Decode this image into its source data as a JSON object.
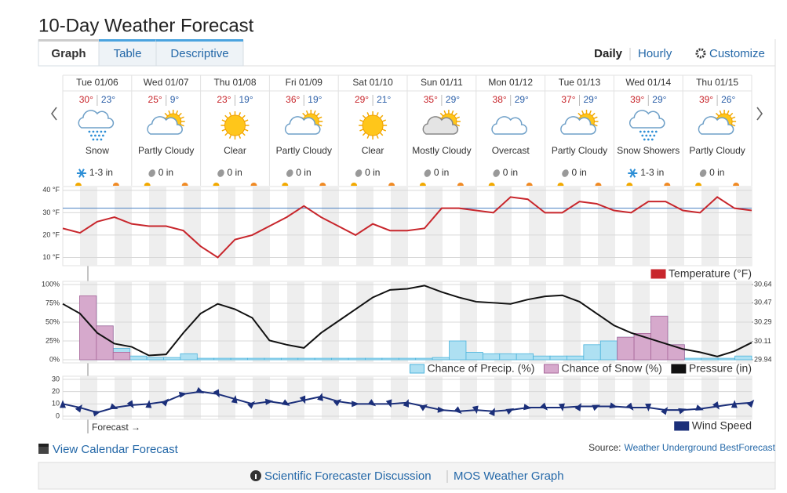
{
  "header": {
    "title": "10-Day Weather Forecast",
    "tabs": [
      "Graph",
      "Table",
      "Descriptive"
    ],
    "view_links": [
      "Daily",
      "Hourly",
      "Customize"
    ]
  },
  "days": [
    {
      "date": "Tue 01/06",
      "high": "30°",
      "low": "23°",
      "condition": "Snow",
      "precip": "1-3 in",
      "icon": "snow"
    },
    {
      "date": "Wed 01/07",
      "high": "25°",
      "low": "9°",
      "condition": "Partly Cloudy",
      "precip": "0 in",
      "icon": "partly-cloudy"
    },
    {
      "date": "Thu 01/08",
      "high": "23°",
      "low": "19°",
      "condition": "Clear",
      "precip": "0 in",
      "icon": "clear"
    },
    {
      "date": "Fri 01/09",
      "high": "36°",
      "low": "19°",
      "condition": "Partly Cloudy",
      "precip": "0 in",
      "icon": "partly-cloudy"
    },
    {
      "date": "Sat 01/10",
      "high": "29°",
      "low": "21°",
      "condition": "Clear",
      "precip": "0 in",
      "icon": "clear"
    },
    {
      "date": "Sun 01/11",
      "high": "35°",
      "low": "29°",
      "condition": "Mostly Cloudy",
      "precip": "0 in",
      "icon": "mostly-cloudy"
    },
    {
      "date": "Mon 01/12",
      "high": "38°",
      "low": "29°",
      "condition": "Overcast",
      "precip": "0 in",
      "icon": "overcast"
    },
    {
      "date": "Tue 01/13",
      "high": "37°",
      "low": "29°",
      "condition": "Partly Cloudy",
      "precip": "0 in",
      "icon": "partly-cloudy"
    },
    {
      "date": "Wed 01/14",
      "high": "39°",
      "low": "29°",
      "condition": "Snow Showers",
      "precip": "1-3 in",
      "icon": "snow"
    },
    {
      "date": "Thu 01/15",
      "high": "39°",
      "low": "26°",
      "condition": "Partly Cloudy",
      "precip": "0 in",
      "icon": "partly-cloudy"
    }
  ],
  "chart_data": [
    {
      "type": "line",
      "grid": true,
      "legend": "bottom-right",
      "reference_line": 32,
      "reference_color": "#4a7fc1",
      "ylim": [
        7,
        41
      ],
      "yticks": [
        {
          "value": 10,
          "label": "10 °F"
        },
        {
          "value": 20,
          "label": "20 °F"
        },
        {
          "value": 30,
          "label": "30 °F"
        },
        {
          "value": 40,
          "label": "40 °F"
        }
      ],
      "series": [
        {
          "name": "Temperature (°F)",
          "color": "#c8262c",
          "values": [
            23,
            21,
            26,
            28,
            25,
            24,
            24,
            22,
            15,
            10,
            18,
            20,
            24,
            28,
            33,
            28,
            24,
            20,
            25,
            22,
            22,
            23,
            32,
            32,
            31,
            30,
            37,
            36,
            30,
            30,
            35,
            34,
            31,
            30,
            35,
            35,
            31,
            30,
            37,
            32,
            31
          ]
        }
      ]
    },
    {
      "type": "combo",
      "grid": true,
      "legend": "bottom-right",
      "ylim": [
        0,
        100
      ],
      "yticks": [
        {
          "value": 0,
          "label": "0%"
        },
        {
          "value": 25,
          "label": "25%"
        },
        {
          "value": 50,
          "label": "50%"
        },
        {
          "value": 75,
          "label": "75%"
        },
        {
          "value": 100,
          "label": "100%"
        }
      ],
      "y2lim": [
        29.94,
        30.64
      ],
      "y2ticks": [
        29.94,
        30.11,
        30.29,
        30.47,
        30.64
      ],
      "series": [
        {
          "name": "Chance of Precip. (%)",
          "type": "bar",
          "color": "#aee0f2",
          "stroke": "#4cb4dc",
          "values": [
            0,
            85,
            45,
            15,
            5,
            3,
            3,
            8,
            2,
            2,
            2,
            2,
            2,
            2,
            2,
            2,
            2,
            2,
            2,
            2,
            2,
            2,
            3,
            25,
            10,
            8,
            8,
            8,
            5,
            5,
            5,
            20,
            25,
            30,
            35,
            58,
            20,
            2,
            2,
            2,
            5
          ]
        },
        {
          "name": "Chance of Snow (%)",
          "type": "bar",
          "color": "#d6a9cc",
          "stroke": "#a8679a",
          "values": [
            0,
            85,
            45,
            10,
            0,
            0,
            0,
            0,
            0,
            0,
            0,
            0,
            0,
            0,
            0,
            0,
            0,
            0,
            0,
            0,
            0,
            0,
            0,
            0,
            0,
            0,
            0,
            0,
            0,
            0,
            0,
            0,
            0,
            30,
            35,
            58,
            20,
            0,
            0,
            0,
            0
          ]
        },
        {
          "name": "Pressure (in)",
          "type": "line",
          "axis": "y2",
          "color": "#111111",
          "values": [
            30.46,
            30.37,
            30.19,
            30.09,
            30.06,
            29.98,
            29.99,
            30.19,
            30.37,
            30.46,
            30.41,
            30.33,
            30.12,
            30.08,
            30.05,
            30.19,
            30.3,
            30.41,
            30.52,
            30.59,
            30.6,
            30.63,
            30.57,
            30.52,
            30.48,
            30.47,
            30.46,
            30.5,
            30.53,
            30.54,
            30.48,
            30.37,
            30.26,
            30.19,
            30.14,
            30.09,
            30.04,
            30.01,
            29.97,
            30.02,
            30.1
          ]
        }
      ]
    },
    {
      "type": "line",
      "grid": true,
      "legend": "bottom-right",
      "markers": "triangle",
      "ylim": [
        0,
        30
      ],
      "yticks": [
        0,
        10,
        20,
        30
      ],
      "series": [
        {
          "name": "Wind Speed",
          "color": "#1b2f7a",
          "values": [
            10,
            7,
            3,
            7,
            9,
            10,
            12,
            18,
            20,
            18,
            14,
            10,
            12,
            10,
            13,
            16,
            12,
            10,
            10,
            10,
            11,
            8,
            5,
            4,
            5,
            4,
            5,
            7,
            7,
            7,
            8,
            8,
            8,
            7,
            7,
            5,
            5,
            6,
            8,
            10,
            11
          ]
        }
      ]
    }
  ],
  "forecast_marker": "Forecast →",
  "footer": {
    "calendar_link": "View Calendar Forecast",
    "source_label": "Source:",
    "source_link": "Weather Underground BestForecast",
    "links": [
      "Scientific Forecaster Discussion",
      "MOS Weather Graph"
    ]
  }
}
